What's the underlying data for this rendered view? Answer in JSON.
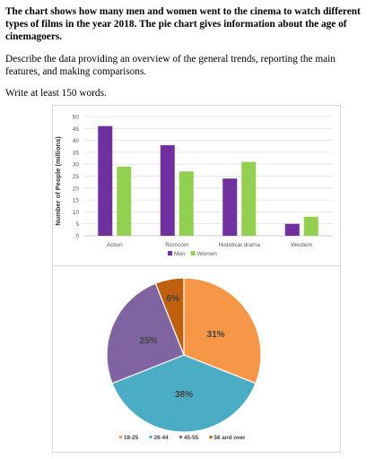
{
  "task": {
    "lead": "The chart shows how many men and women went to the cinema to watch different types of films in the year 2018. The pie chart gives information about the age of cinemagoers.",
    "describe": "Describe the data providing an overview of the general trends, reporting the main features, and making comparisons.",
    "words": "Write at least 150 words."
  },
  "chart_data": [
    {
      "type": "bar",
      "categories": [
        "Action",
        "Romcom",
        "Histotical drama",
        "Western"
      ],
      "series": [
        {
          "name": "Men",
          "color": "#7030a0",
          "values": [
            46,
            38,
            24,
            5
          ]
        },
        {
          "name": "Women",
          "color": "#92d050",
          "values": [
            29,
            27,
            31,
            8
          ]
        }
      ],
      "ylabel": "Number of People (millions)",
      "ylim": [
        0,
        50
      ],
      "yticks": [
        0,
        5,
        10,
        15,
        20,
        25,
        30,
        35,
        40,
        45,
        50
      ],
      "grid": true,
      "legend": "bottom"
    },
    {
      "type": "pie",
      "labels": [
        "18-25",
        "26-44",
        "45-55",
        "56 and over"
      ],
      "values": [
        31,
        38,
        25,
        6
      ],
      "value_labels": [
        "31%",
        "38%",
        "25%",
        "6%"
      ],
      "colors": [
        "#f79646",
        "#4bacc6",
        "#8064a2",
        "#c0600f"
      ],
      "legend": "bottom"
    }
  ]
}
